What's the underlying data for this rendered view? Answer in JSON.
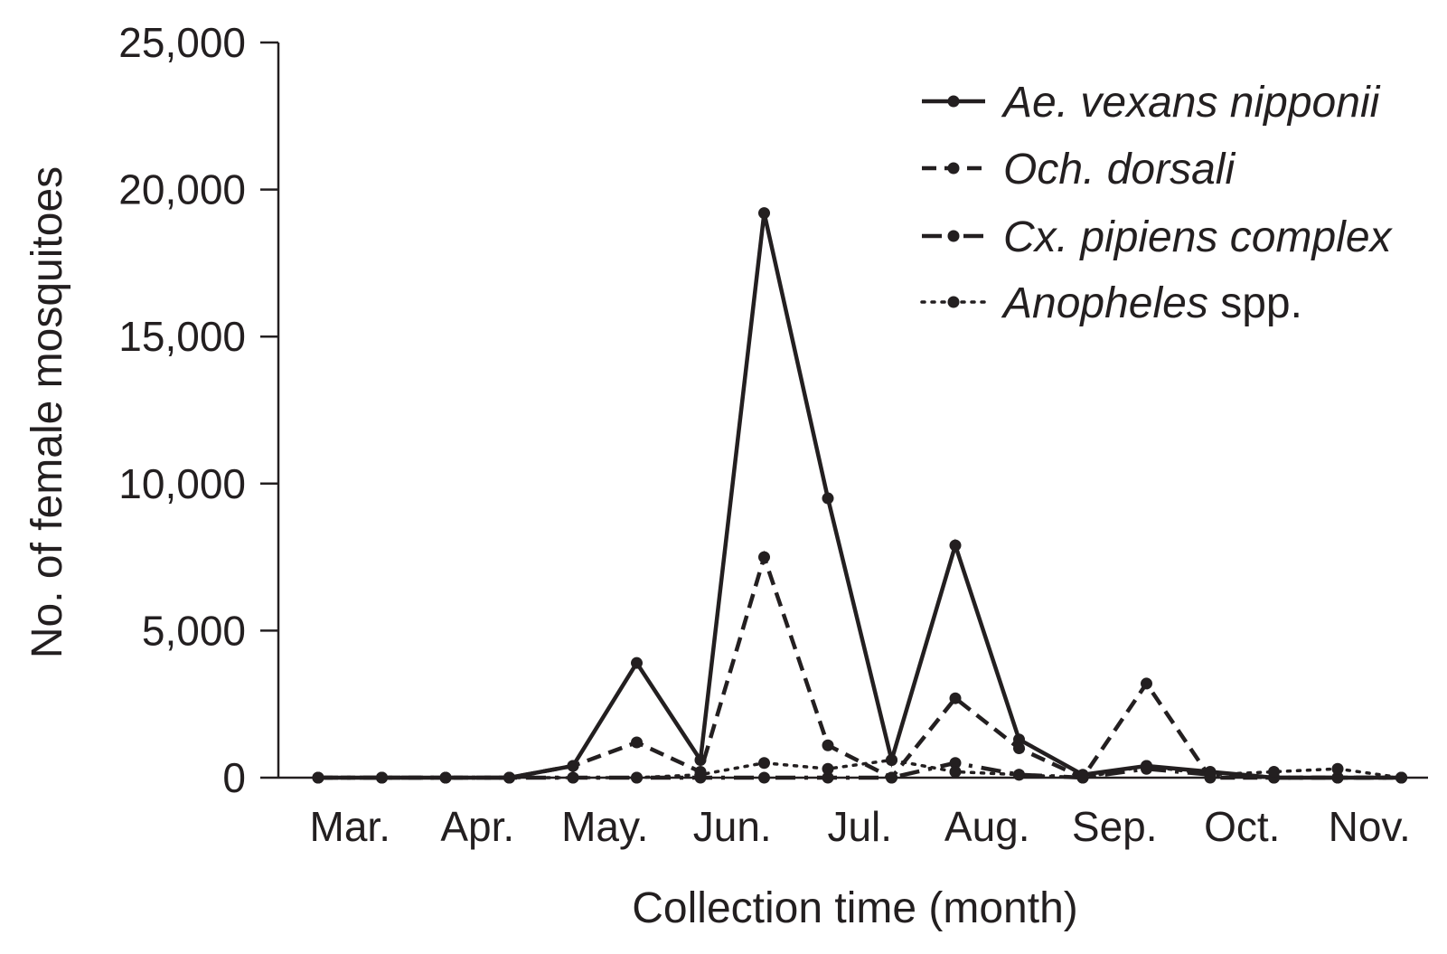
{
  "chart_data": {
    "type": "line",
    "title": "",
    "xlabel": "Collection time (month)",
    "ylabel": "No. of female mosquitoes",
    "ylim": [
      0,
      25000
    ],
    "yticks": [
      0,
      5000,
      10000,
      15000,
      20000,
      25000
    ],
    "ytick_labels": [
      "0",
      "5,000",
      "10,000",
      "15,000",
      "20,000",
      "25,000"
    ],
    "month_labels": [
      "Mar.",
      "Apr.",
      "May.",
      "Jun.",
      "Jul.",
      "Aug.",
      "Sep.",
      "Oct.",
      "Nov."
    ],
    "x_points": [
      "Mar. 1",
      "Mar. 2",
      "Apr. 1",
      "Apr. 2",
      "May. 1",
      "May. 2",
      "Jun. 1",
      "Jun. 2",
      "Jul. 1",
      "Jul. 2",
      "Aug. 1",
      "Aug. 2",
      "Sep. 1",
      "Sep. 2",
      "Oct. 1",
      "Oct. 2",
      "Nov. 1",
      "Nov. 2"
    ],
    "grid": false,
    "legend_position": "top-right",
    "series": [
      {
        "name_italic": "Ae. vexans nipponii",
        "name_plain": "",
        "style": "solid",
        "values": [
          0,
          0,
          0,
          0,
          400,
          3900,
          600,
          19200,
          9500,
          600,
          7900,
          1300,
          100,
          400,
          200,
          0,
          0,
          0
        ]
      },
      {
        "name_italic": "Och. dorsali",
        "name_plain": "",
        "style": "dashed",
        "values": [
          0,
          0,
          0,
          0,
          400,
          1200,
          200,
          7500,
          1100,
          0,
          2700,
          1000,
          0,
          3200,
          0,
          0,
          0,
          0
        ]
      },
      {
        "name_italic": "Cx. pipiens complex",
        "name_plain": "",
        "style": "dashdot",
        "values": [
          0,
          0,
          0,
          0,
          0,
          0,
          0,
          0,
          0,
          0,
          500,
          100,
          0,
          300,
          100,
          0,
          0,
          0
        ]
      },
      {
        "name_italic": "Anopheles",
        "name_plain": " spp.",
        "style": "dotted",
        "values": [
          0,
          0,
          0,
          0,
          0,
          0,
          100,
          500,
          300,
          600,
          200,
          100,
          0,
          400,
          100,
          200,
          300,
          0
        ]
      }
    ]
  }
}
